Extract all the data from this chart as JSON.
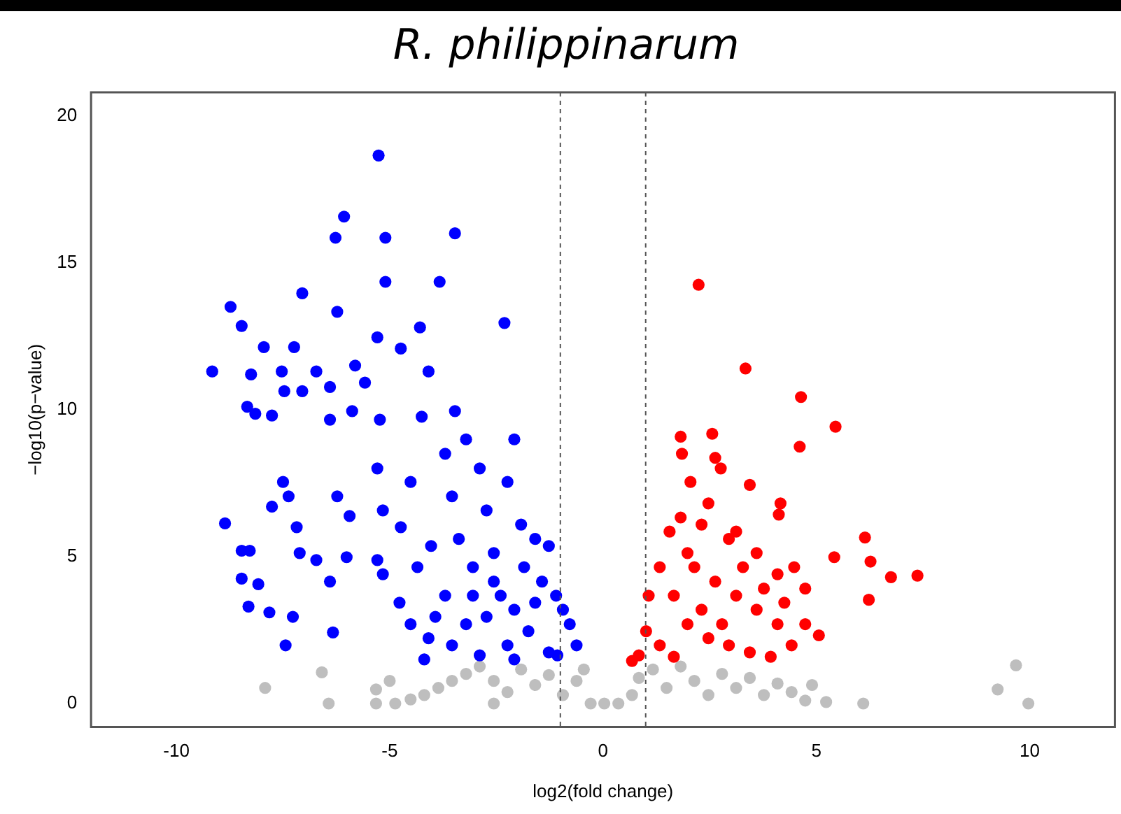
{
  "chart_data": {
    "type": "scatter",
    "title": "R. philippinarum",
    "xlabel": "log2(fold change)",
    "ylabel": "−log10(p−value)",
    "xlim": [
      -12,
      12
    ],
    "ylim": [
      -0.8,
      20.8
    ],
    "xticks": [
      -10,
      -5,
      0,
      5,
      10
    ],
    "yticks": [
      0,
      5,
      10,
      15,
      20
    ],
    "grid": false,
    "legend": false,
    "marker": "circle",
    "ref_lines": [
      {
        "axis": "x",
        "value": -1,
        "line_style": "dotted",
        "color": "#555555"
      },
      {
        "axis": "x",
        "value": 1,
        "line_style": "dotted",
        "color": "#555555"
      }
    ],
    "series": [
      {
        "color": "#0000ff",
        "x": [
          -5.26,
          -6.07,
          -3.47,
          -5.1,
          -6.27,
          -8.73,
          -7.05,
          -5.1,
          -3.83,
          -2.31,
          -4.29,
          -6.23,
          -9.16,
          -8.47,
          -7.95,
          -7.24,
          -5.29,
          -4.74,
          -5.81,
          -6.72,
          -7.53,
          -8.25,
          -6.4,
          -7.05,
          -7.47,
          -5.58,
          -4.09,
          -8.34,
          -8.15,
          -7.76,
          -6.4,
          -5.88,
          -5.23,
          -4.25,
          -3.47,
          -8.86,
          -8.47,
          -8.28,
          -7.76,
          -7.5,
          -7.37,
          -7.18,
          -8.31,
          -7.82,
          -7.44,
          -7.27,
          -7.11,
          -6.72,
          -6.4,
          -6.33,
          -6.01,
          -6.23,
          -5.94,
          -8.08,
          -8.47,
          -5.29,
          -5.16,
          -5.29,
          -5.16,
          -4.51,
          -4.74,
          -4.35,
          -4.77,
          -4.03,
          -3.7,
          -3.54,
          -3.21,
          -3.38,
          -3.7,
          -4.09,
          -2.89,
          -2.73,
          -2.56,
          -3.05,
          -2.24,
          -2.08,
          -1.92,
          -1.85,
          -1.59,
          -1.27,
          -1.43,
          -1.1,
          -0.94,
          -0.78,
          -0.62,
          -2.4,
          -2.73,
          -3.21,
          -3.54,
          -2.24,
          -1.75,
          -1.27,
          -2.89,
          -2.08,
          -1.59,
          -2.56,
          -3.05,
          -2.08,
          -1.07,
          -4.19,
          -4.51,
          -3.93
        ],
        "values": [
          18.65,
          16.57,
          16.0,
          15.85,
          15.85,
          13.5,
          13.96,
          14.35,
          14.35,
          12.95,
          12.8,
          13.33,
          11.3,
          12.85,
          12.13,
          12.13,
          12.46,
          12.08,
          11.5,
          11.3,
          11.3,
          11.2,
          10.77,
          10.63,
          10.63,
          10.92,
          11.3,
          10.1,
          9.86,
          9.8,
          9.66,
          9.95,
          9.66,
          9.76,
          9.95,
          6.13,
          5.2,
          5.2,
          6.7,
          7.54,
          7.05,
          6.0,
          3.3,
          3.1,
          1.98,
          2.95,
          5.12,
          4.88,
          4.15,
          2.42,
          4.98,
          7.05,
          6.38,
          4.06,
          4.25,
          8.0,
          6.57,
          4.88,
          4.4,
          7.54,
          6.0,
          4.64,
          3.43,
          5.36,
          8.5,
          7.05,
          8.99,
          5.6,
          3.67,
          2.22,
          8.0,
          6.57,
          5.12,
          4.64,
          7.54,
          8.99,
          6.09,
          4.64,
          5.6,
          5.36,
          4.15,
          3.67,
          3.19,
          2.7,
          1.98,
          3.67,
          2.95,
          2.7,
          1.98,
          1.98,
          2.46,
          1.74,
          1.64,
          3.19,
          3.43,
          4.15,
          3.67,
          1.5,
          1.64,
          1.5,
          2.7,
          2.95
        ]
      },
      {
        "color": "#ff0000",
        "x": [
          2.24,
          3.34,
          4.64,
          5.45,
          4.61,
          1.82,
          1.85,
          2.56,
          2.63,
          2.76,
          2.05,
          3.44,
          4.16,
          4.12,
          6.14,
          6.27,
          5.42,
          6.75,
          7.37,
          6.23,
          1.82,
          1.56,
          2.31,
          2.95,
          3.6,
          4.09,
          4.48,
          4.74,
          5.06,
          4.74,
          1.33,
          1.07,
          1.01,
          0.68,
          0.84,
          1.66,
          2.14,
          2.63,
          3.12,
          3.6,
          4.09,
          4.42,
          1.33,
          1.98,
          2.47,
          2.95,
          3.44,
          3.93,
          1.66,
          2.31,
          2.79,
          3.28,
          3.77,
          4.25,
          1.98,
          3.12,
          2.47
        ],
        "values": [
          14.25,
          11.4,
          10.43,
          9.42,
          8.74,
          9.08,
          8.5,
          9.18,
          8.36,
          8.0,
          7.54,
          7.44,
          6.81,
          6.43,
          5.65,
          4.83,
          4.98,
          4.3,
          4.35,
          3.53,
          6.33,
          5.85,
          6.09,
          5.6,
          5.12,
          4.4,
          4.64,
          3.91,
          2.32,
          2.7,
          4.64,
          3.67,
          2.46,
          1.45,
          1.64,
          3.67,
          4.64,
          4.15,
          3.67,
          3.19,
          2.7,
          1.98,
          1.98,
          2.7,
          2.22,
          1.98,
          1.74,
          1.59,
          1.59,
          3.19,
          2.7,
          4.64,
          3.91,
          3.43,
          5.12,
          5.85,
          6.81
        ]
      },
      {
        "color": "#bebebe",
        "x": [
          -7.92,
          -6.59,
          -6.43,
          -5.32,
          -5.32,
          -5.0,
          -4.51,
          -4.19,
          -3.86,
          -3.54,
          -3.21,
          -2.89,
          -2.56,
          -2.24,
          -1.92,
          -1.59,
          -1.27,
          -0.94,
          -0.62,
          -0.45,
          -0.29,
          0.03,
          0.36,
          0.68,
          0.84,
          1.17,
          1.49,
          1.82,
          2.14,
          2.47,
          2.79,
          3.12,
          3.44,
          3.77,
          4.09,
          4.42,
          4.74,
          4.9,
          5.23,
          6.1,
          9.25,
          9.68,
          9.97,
          -4.87,
          -2.56
        ],
        "values": [
          0.53,
          1.06,
          0,
          0,
          0.48,
          0.77,
          0.14,
          0.29,
          0.53,
          0.77,
          1.01,
          1.26,
          0.77,
          0.39,
          1.16,
          0.63,
          0.97,
          0.29,
          0.77,
          1.16,
          0,
          0,
          0,
          0.29,
          0.87,
          1.16,
          0.53,
          1.26,
          0.77,
          0.29,
          1.01,
          0.53,
          0.87,
          0.29,
          0.68,
          0.39,
          0.1,
          0.63,
          0.05,
          0,
          0.48,
          1.3,
          0,
          0,
          0
        ]
      }
    ]
  }
}
